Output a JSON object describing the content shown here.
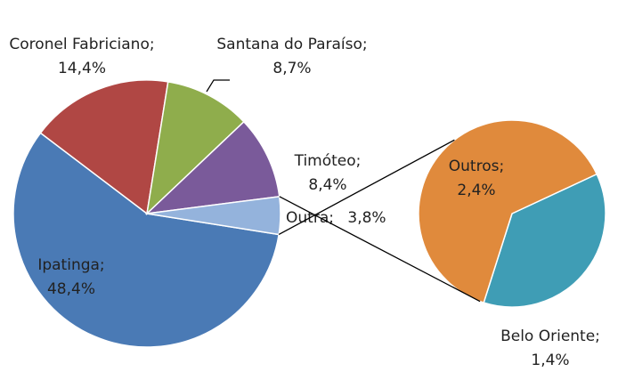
{
  "chart_data": {
    "type": "pie-of-pie",
    "categories": [
      "Ipatinga;",
      "Coronel Fabriciano;",
      "Santana do Paraíso;",
      "Timóteo;",
      "Outra;"
    ],
    "values": [
      48.4,
      14.4,
      8.7,
      8.4,
      3.8
    ],
    "value_labels": [
      "48,4%",
      "14,4%",
      "8,7%",
      "8,4%",
      "3,8%"
    ],
    "colors": [
      "#4a7ab5",
      "#b04744",
      "#8fad4c",
      "#7a5a9a",
      "#94b3dc"
    ],
    "secondary": {
      "categories": [
        "Belo Oriente;",
        "Outros;"
      ],
      "values": [
        1.4,
        2.4
      ],
      "value_labels": [
        "1,4%",
        "2,4%"
      ],
      "colors": [
        "#3f9db5",
        "#e08a3c"
      ]
    }
  }
}
